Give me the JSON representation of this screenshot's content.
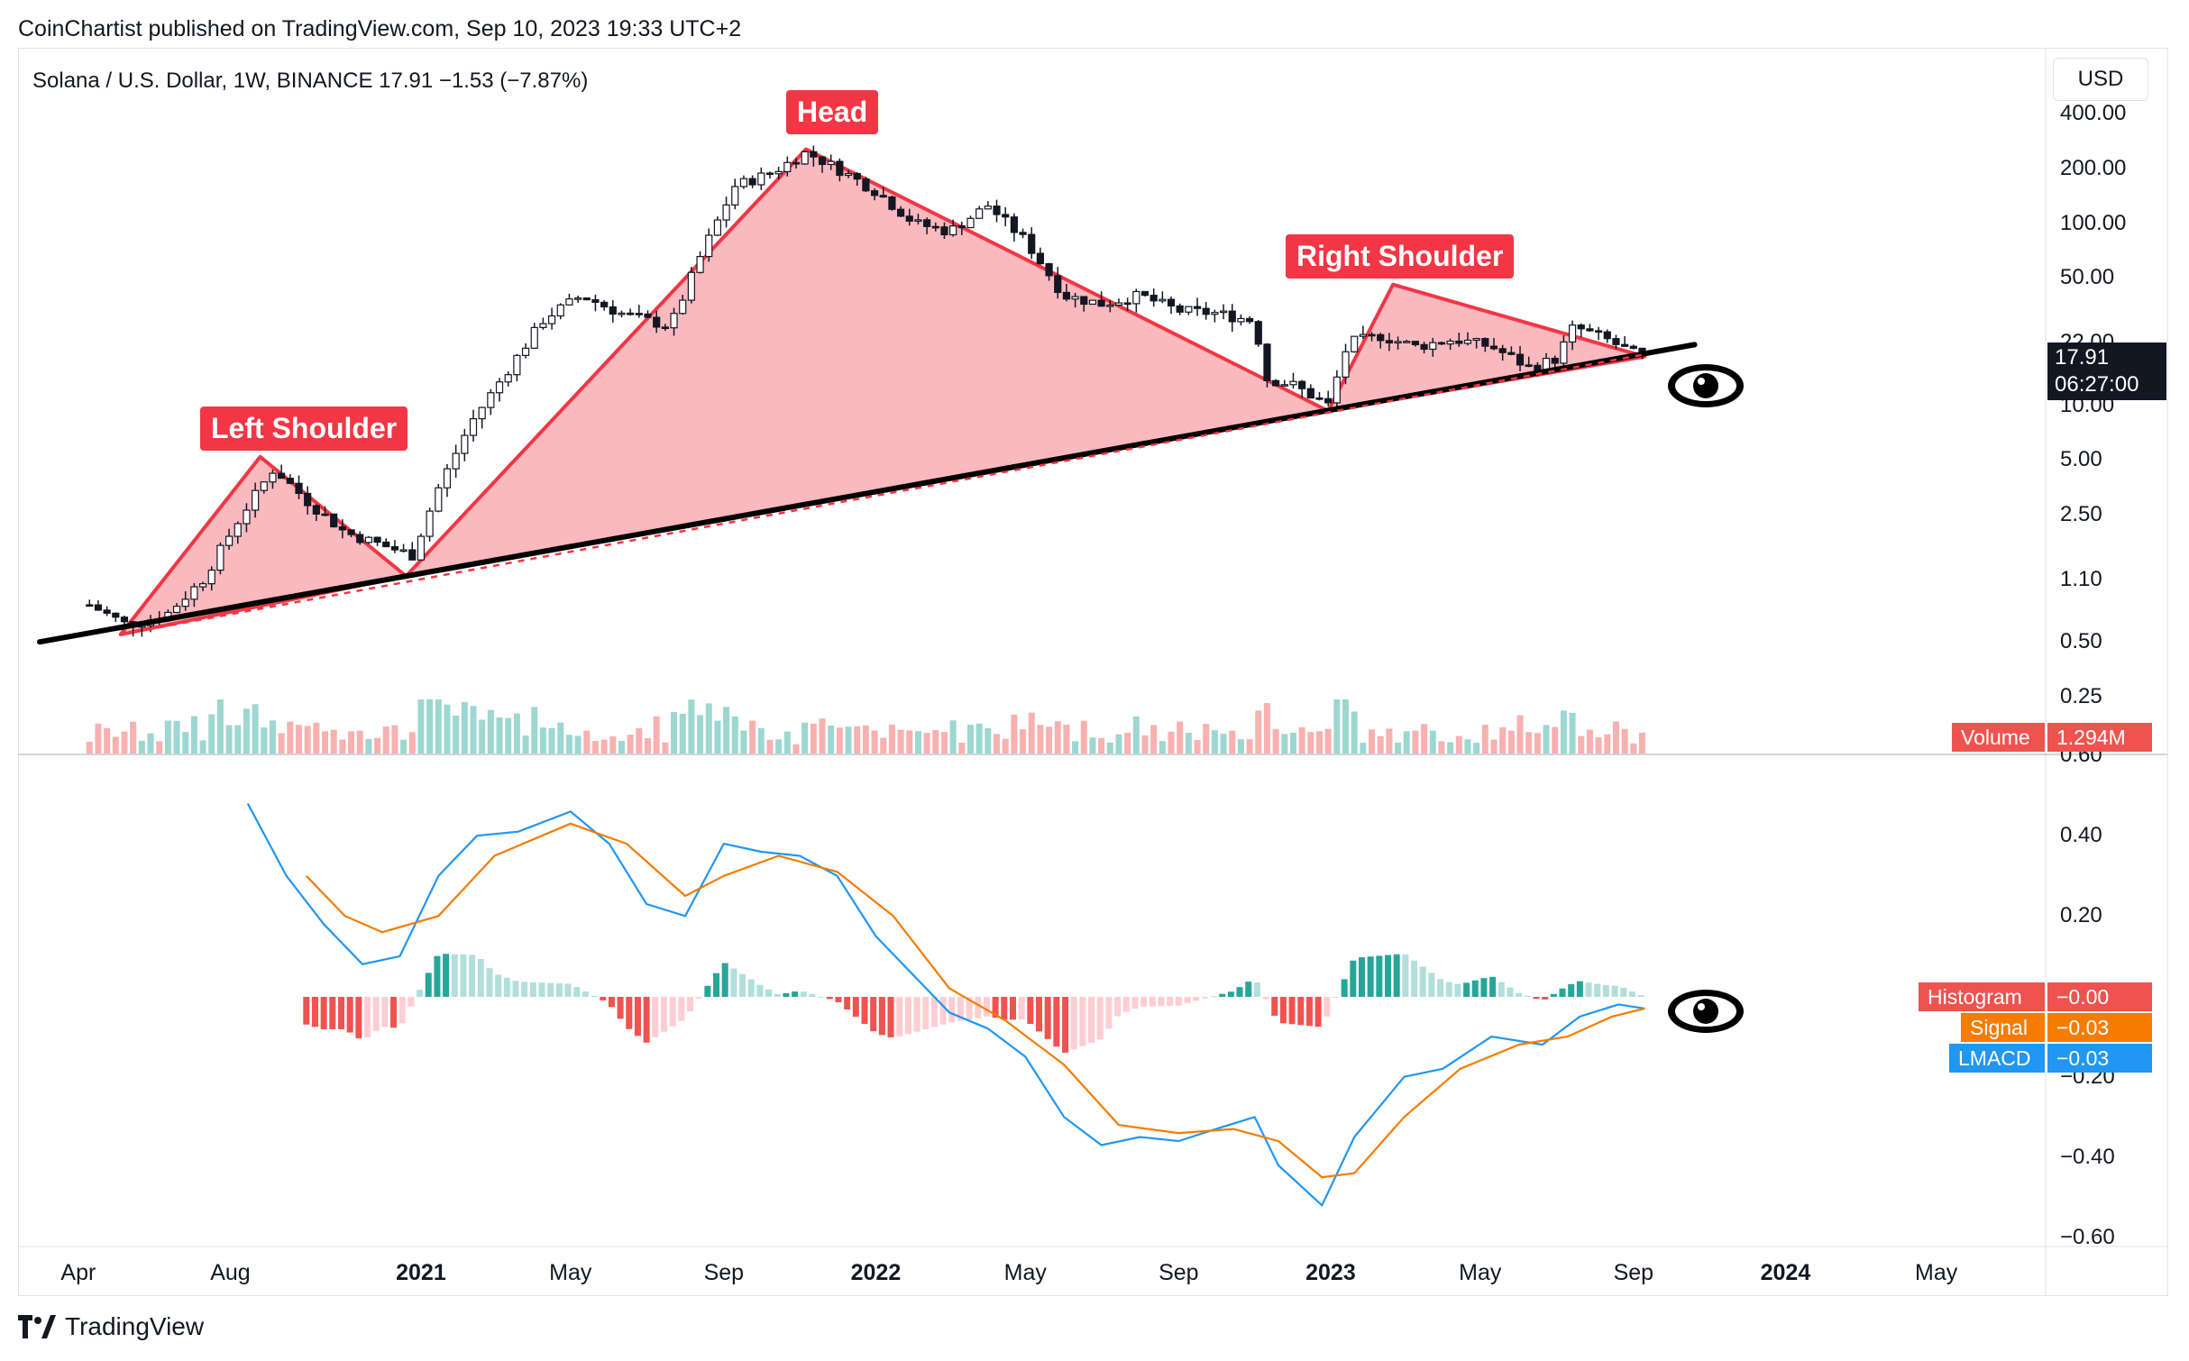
{
  "header": {
    "publisher_line": "CoinChartist published on TradingView.com, Sep 10, 2023 19:33 UTC+2"
  },
  "symbol": {
    "legend": "Solana / U.S. Dollar, 1W, BINANCE  17.91  −1.53 (−7.87%)",
    "currency_button": "USD",
    "last_price": "17.91",
    "countdown": "06:27:00"
  },
  "footer": {
    "brand": "TradingView"
  },
  "colors": {
    "up": "#26a69a",
    "down": "#ef5350",
    "pattern_line": "#f23645",
    "pattern_fill": "#f7a1a8",
    "macd": "#2196f3",
    "signal": "#f57c00"
  },
  "chart_data": [
    {
      "type": "candlestick",
      "title": "",
      "scale": "log",
      "ylim": [
        0.15,
        600
      ],
      "y_ticks": [
        "400.00",
        "200.00",
        "100.00",
        "50.00",
        "22.00",
        "10.00",
        "5.00",
        "2.50",
        "1.10",
        "0.50",
        "0.25"
      ],
      "x_ticks": [
        {
          "label": "Apr",
          "bold": false
        },
        {
          "label": "Aug",
          "bold": false
        },
        {
          "label": "2021",
          "bold": true
        },
        {
          "label": "May",
          "bold": false
        },
        {
          "label": "Sep",
          "bold": false
        },
        {
          "label": "2022",
          "bold": true
        },
        {
          "label": "May",
          "bold": false
        },
        {
          "label": "Sep",
          "bold": false
        },
        {
          "label": "2023",
          "bold": true
        },
        {
          "label": "May",
          "bold": false
        },
        {
          "label": "Sep",
          "bold": false
        },
        {
          "label": "2024",
          "bold": true
        },
        {
          "label": "May",
          "bold": false
        }
      ],
      "price_path": [
        [
          "2020-04-10",
          0.8
        ],
        [
          "2020-05-10",
          0.62
        ],
        [
          "2020-06-10",
          0.7
        ],
        [
          "2020-07-10",
          1.1
        ],
        [
          "2020-08-10",
          2.5
        ],
        [
          "2020-09-05",
          4.5
        ],
        [
          "2020-10-01",
          3.0
        ],
        [
          "2020-11-01",
          2.0
        ],
        [
          "2020-12-01",
          1.7
        ],
        [
          "2020-12-25",
          1.5
        ],
        [
          "2021-01-15",
          3.5
        ],
        [
          "2021-02-10",
          8.0
        ],
        [
          "2021-03-10",
          15.0
        ],
        [
          "2021-04-10",
          30.0
        ],
        [
          "2021-05-10",
          40.0
        ],
        [
          "2021-06-10",
          32.0
        ],
        [
          "2021-07-20",
          27.0
        ],
        [
          "2021-08-15",
          70.0
        ],
        [
          "2021-09-10",
          160.0
        ],
        [
          "2021-10-10",
          190.0
        ],
        [
          "2021-11-06",
          245.0
        ],
        [
          "2021-12-01",
          200.0
        ],
        [
          "2022-01-01",
          150.0
        ],
        [
          "2022-02-01",
          100.0
        ],
        [
          "2022-03-01",
          90.0
        ],
        [
          "2022-04-01",
          125.0
        ],
        [
          "2022-05-01",
          80.0
        ],
        [
          "2022-06-01",
          40.0
        ],
        [
          "2022-07-01",
          36.0
        ],
        [
          "2022-08-01",
          40.0
        ],
        [
          "2022-09-01",
          33.0
        ],
        [
          "2022-10-01",
          32.0
        ],
        [
          "2022-11-01",
          29.0
        ],
        [
          "2022-11-10",
          14.0
        ],
        [
          "2022-12-01",
          13.0
        ],
        [
          "2022-12-30",
          10.0
        ],
        [
          "2023-01-15",
          22.0
        ],
        [
          "2023-02-10",
          24.0
        ],
        [
          "2023-03-10",
          21.0
        ],
        [
          "2023-04-10",
          23.0
        ],
        [
          "2023-05-10",
          21.0
        ],
        [
          "2023-06-10",
          16.0
        ],
        [
          "2023-07-01",
          18.0
        ],
        [
          "2023-07-15",
          27.0
        ],
        [
          "2023-08-10",
          23.0
        ],
        [
          "2023-09-10",
          17.91
        ]
      ],
      "annotations": [
        {
          "label": "Left Shoulder"
        },
        {
          "label": "Head"
        },
        {
          "label": "Right Shoulder"
        }
      ],
      "pattern_points": {
        "left_shoulder": [
          [
            "2020-05-05",
            0.55
          ],
          [
            "2020-08-25",
            5.2
          ],
          [
            "2020-12-20",
            1.15
          ]
        ],
        "head": [
          [
            "2020-12-20",
            1.15
          ],
          [
            "2021-11-06",
            255.0
          ],
          [
            "2022-12-30",
            9.3
          ]
        ],
        "right_shoulder": [
          [
            "2022-12-30",
            9.3
          ],
          [
            "2023-02-20",
            46.0
          ],
          [
            "2023-09-10",
            18.5
          ]
        ]
      },
      "neckline": [
        [
          "2020-03-01",
          0.5
        ],
        [
          "2023-10-20",
          21.5
        ]
      ],
      "volume_label": "Volume",
      "volume_value": "1.294M"
    },
    {
      "type": "line",
      "title": "",
      "ylim": [
        -0.6,
        0.6
      ],
      "y_ticks": [
        "0.60",
        "0.40",
        "0.20",
        "−0.20",
        "−0.40",
        "−0.60"
      ],
      "series": [
        {
          "name": "LMACD",
          "values_path": [
            [
              "2020-08-15",
              0.48
            ],
            [
              "2020-09-15",
              0.3
            ],
            [
              "2020-10-15",
              0.18
            ],
            [
              "2020-11-15",
              0.08
            ],
            [
              "2020-12-15",
              0.1
            ],
            [
              "2021-01-15",
              0.3
            ],
            [
              "2021-02-15",
              0.4
            ],
            [
              "2021-03-20",
              0.41
            ],
            [
              "2021-05-01",
              0.46
            ],
            [
              "2021-06-01",
              0.38
            ],
            [
              "2021-07-01",
              0.23
            ],
            [
              "2021-08-01",
              0.2
            ],
            [
              "2021-09-01",
              0.38
            ],
            [
              "2021-10-01",
              0.36
            ],
            [
              "2021-11-01",
              0.35
            ],
            [
              "2021-12-01",
              0.3
            ],
            [
              "2022-01-01",
              0.15
            ],
            [
              "2022-02-01",
              0.05
            ],
            [
              "2022-03-01",
              -0.04
            ],
            [
              "2022-04-01",
              -0.08
            ],
            [
              "2022-05-01",
              -0.15
            ],
            [
              "2022-06-01",
              -0.3
            ],
            [
              "2022-07-01",
              -0.37
            ],
            [
              "2022-08-01",
              -0.35
            ],
            [
              "2022-09-01",
              -0.36
            ],
            [
              "2022-10-01",
              -0.33
            ],
            [
              "2022-11-01",
              -0.3
            ],
            [
              "2022-11-20",
              -0.42
            ],
            [
              "2022-12-25",
              -0.52
            ],
            [
              "2023-01-20",
              -0.35
            ],
            [
              "2023-03-01",
              -0.2
            ],
            [
              "2023-04-01",
              -0.18
            ],
            [
              "2023-05-10",
              -0.1
            ],
            [
              "2023-06-20",
              -0.12
            ],
            [
              "2023-07-20",
              -0.05
            ],
            [
              "2023-08-20",
              -0.02
            ],
            [
              "2023-09-10",
              -0.03
            ]
          ]
        },
        {
          "name": "Signal",
          "values_path": [
            [
              "2020-10-01",
              0.3
            ],
            [
              "2020-11-01",
              0.2
            ],
            [
              "2020-12-01",
              0.16
            ],
            [
              "2021-01-15",
              0.2
            ],
            [
              "2021-03-01",
              0.35
            ],
            [
              "2021-05-01",
              0.43
            ],
            [
              "2021-06-15",
              0.38
            ],
            [
              "2021-08-01",
              0.25
            ],
            [
              "2021-09-01",
              0.3
            ],
            [
              "2021-10-15",
              0.35
            ],
            [
              "2021-12-01",
              0.31
            ],
            [
              "2022-01-15",
              0.2
            ],
            [
              "2022-03-01",
              0.02
            ],
            [
              "2022-04-15",
              -0.06
            ],
            [
              "2022-06-01",
              -0.17
            ],
            [
              "2022-07-15",
              -0.32
            ],
            [
              "2022-09-01",
              -0.34
            ],
            [
              "2022-10-15",
              -0.33
            ],
            [
              "2022-11-20",
              -0.36
            ],
            [
              "2022-12-25",
              -0.45
            ],
            [
              "2023-01-20",
              -0.44
            ],
            [
              "2023-03-01",
              -0.3
            ],
            [
              "2023-04-15",
              -0.18
            ],
            [
              "2023-06-01",
              -0.12
            ],
            [
              "2023-07-10",
              -0.1
            ],
            [
              "2023-08-15",
              -0.05
            ],
            [
              "2023-09-10",
              -0.03
            ]
          ]
        }
      ],
      "histogram_label": "Histogram",
      "histogram_value": "−0.00",
      "signal_label": "Signal",
      "signal_value": "−0.03",
      "lmacd_label": "LMACD",
      "lmacd_value": "−0.03"
    }
  ]
}
